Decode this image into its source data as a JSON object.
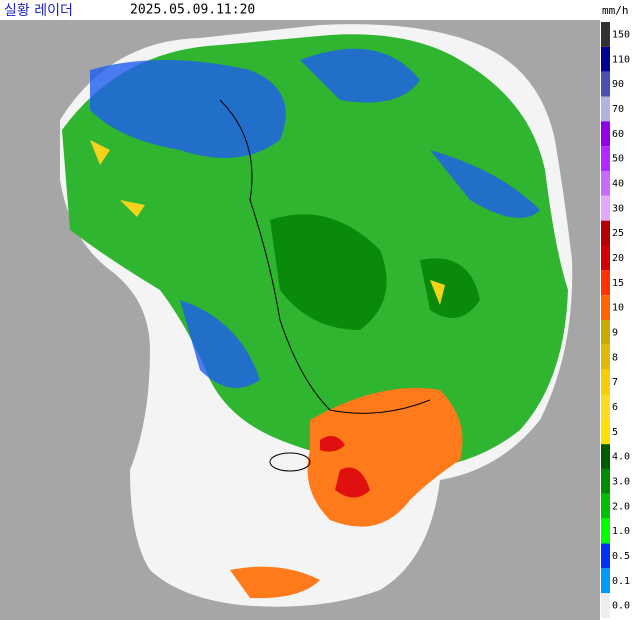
{
  "header": {
    "title": "실황 레이더",
    "timestamp": "2025.05.09.11:20",
    "unit": "mm/h"
  },
  "legend": {
    "items": [
      {
        "label": "150",
        "color": "#333333"
      },
      {
        "label": "110",
        "color": "#000390"
      },
      {
        "label": "90",
        "color": "#4c4eb1"
      },
      {
        "label": "70",
        "color": "#b3b4de"
      },
      {
        "label": "60",
        "color": "#9300e4"
      },
      {
        "label": "50",
        "color": "#b329ff"
      },
      {
        "label": "40",
        "color": "#c969ff"
      },
      {
        "label": "30",
        "color": "#e0a9ff"
      },
      {
        "label": "25",
        "color": "#b40000"
      },
      {
        "label": "20",
        "color": "#d20000"
      },
      {
        "label": "15",
        "color": "#ff3200"
      },
      {
        "label": "10",
        "color": "#ff6600"
      },
      {
        "label": "9",
        "color": "#ccaa00"
      },
      {
        "label": "8",
        "color": "#e0b900"
      },
      {
        "label": "7",
        "color": "#f9cd00"
      },
      {
        "label": "6",
        "color": "#ffdc1f"
      },
      {
        "label": "5",
        "color": "#ffe100"
      },
      {
        "label": "4.0",
        "color": "#005a00"
      },
      {
        "label": "3.0",
        "color": "#008c00"
      },
      {
        "label": "2.0",
        "color": "#00be00"
      },
      {
        "label": "1.0",
        "color": "#00ff00"
      },
      {
        "label": "0.5",
        "color": "#0033f5"
      },
      {
        "label": "0.1",
        "color": "#009bf5"
      },
      {
        "label": "0.0",
        "color": "#eeeeee"
      }
    ]
  }
}
